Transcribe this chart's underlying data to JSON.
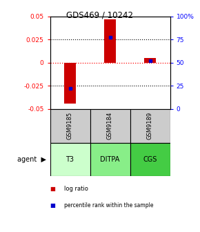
{
  "title": "GDS469 / 10242",
  "samples": [
    "GSM9185",
    "GSM9184",
    "GSM9189"
  ],
  "agents": [
    "T3",
    "DITPA",
    "CGS"
  ],
  "log_ratios": [
    -0.044,
    0.047,
    0.005
  ],
  "percentile_ranks": [
    0.22,
    0.77,
    0.52
  ],
  "ylim": [
    -0.05,
    0.05
  ],
  "yticks_left": [
    -0.05,
    -0.025,
    0,
    0.025,
    0.05
  ],
  "yticks_right": [
    0,
    25,
    50,
    75,
    100
  ],
  "bar_color": "#cc0000",
  "dot_color": "#0000cc",
  "agent_colors": [
    "#ccffcc",
    "#88ee88",
    "#44cc44"
  ],
  "sample_bg": "#cccccc",
  "legend_bar_color": "#cc0000",
  "legend_dot_color": "#0000cc",
  "bar_width": 0.3
}
